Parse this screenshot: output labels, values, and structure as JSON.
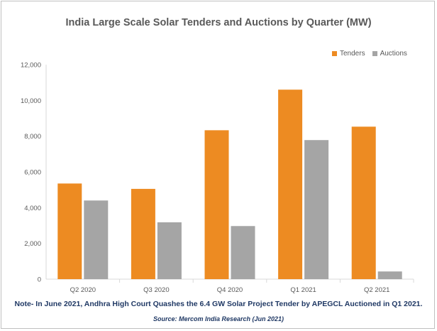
{
  "chart_data": {
    "type": "bar",
    "title": "India Large Scale Solar Tenders and Auctions by Quarter (MW)",
    "categories": [
      "Q2 2020",
      "Q3 2020",
      "Q4 2020",
      "Q1 2021",
      "Q2 2021"
    ],
    "series": [
      {
        "name": "Tenders",
        "values": [
          5350,
          5050,
          8330,
          10600,
          8530
        ],
        "color": "#ed8b22"
      },
      {
        "name": "Auctions",
        "values": [
          4400,
          3180,
          2970,
          7780,
          430
        ],
        "color": "#a5a5a5"
      }
    ],
    "ylim": [
      0,
      12000
    ],
    "yticks": [
      "0",
      "2,000",
      "4,000",
      "6,000",
      "8,000",
      "10,000",
      "12,000"
    ],
    "ytick_values": [
      0,
      2000,
      4000,
      6000,
      8000,
      10000,
      12000
    ],
    "grid": false,
    "legend_position": "top-right"
  },
  "note": "Note- In June 2021, Andhra High Court Quashes the 6.4 GW Solar Project Tender by APEGCL Auctioned in Q1 2021.",
  "source": "Source: Mercom India Research (Jun 2021)"
}
